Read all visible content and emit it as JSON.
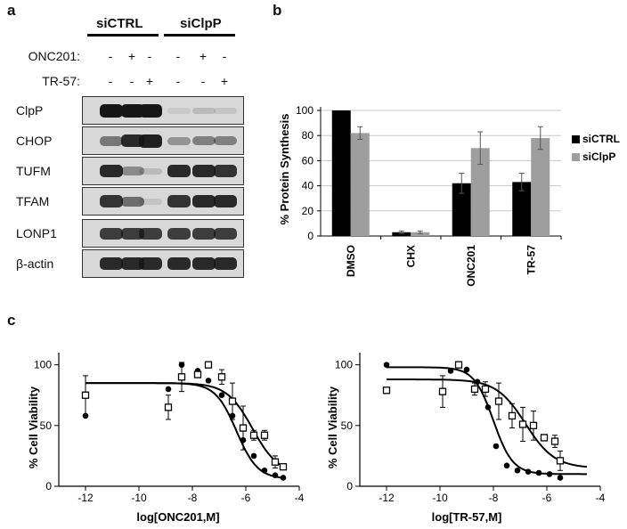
{
  "panels": {
    "a": "a",
    "b": "b",
    "c": "c"
  },
  "panel_a": {
    "groups": [
      "siCTRL",
      "siClpP"
    ],
    "treatments": [
      {
        "label": "ONC201:",
        "signs": [
          "-",
          "+",
          "-",
          "-",
          "+",
          "-"
        ]
      },
      {
        "label": "TR-57:",
        "signs": [
          "-",
          "-",
          "+",
          "-",
          "-",
          "+"
        ]
      }
    ],
    "blots": [
      {
        "label": "ClpP",
        "intensity": [
          1.0,
          1.0,
          1.0,
          0.08,
          0.15,
          0.1
        ]
      },
      {
        "label": "CHOP",
        "intensity": [
          0.5,
          0.9,
          0.95,
          0.35,
          0.45,
          0.45
        ]
      },
      {
        "label": "TUFM",
        "intensity": [
          0.9,
          0.4,
          0.15,
          0.9,
          0.9,
          0.85
        ]
      },
      {
        "label": "TFAM",
        "intensity": [
          0.85,
          0.55,
          0.1,
          0.85,
          0.9,
          0.9
        ]
      },
      {
        "label": "LONP1",
        "intensity": [
          0.8,
          0.8,
          0.8,
          0.8,
          0.8,
          0.8
        ]
      },
      {
        "label": "β-actin",
        "intensity": [
          0.9,
          0.9,
          0.9,
          0.9,
          0.9,
          0.9
        ]
      }
    ]
  },
  "panel_b": {
    "chart_data": {
      "type": "bar",
      "categories": [
        "DMSO",
        "CHX",
        "ONC201",
        "TR-57"
      ],
      "series": [
        {
          "name": "siCTRL",
          "values": [
            100,
            3,
            42,
            43
          ],
          "errors": [
            0,
            1,
            8,
            7
          ],
          "color": "#000000"
        },
        {
          "name": "siClpP",
          "values": [
            82,
            3,
            70,
            78
          ],
          "errors": [
            5,
            1,
            13,
            9
          ],
          "color": "#9e9e9e"
        }
      ],
      "ylabel": "% Protein Synthesis",
      "ylim": [
        0,
        100
      ],
      "yticks": [
        0,
        20,
        40,
        60,
        80,
        100
      ],
      "grid": true,
      "legend": "right"
    }
  },
  "panel_c": {
    "chart_data": [
      {
        "type": "scatter",
        "xlabel": "log[ONC201,M]",
        "ylabel": "% Cell Viability",
        "xlim": [
          -13,
          -4
        ],
        "ylim": [
          0,
          110
        ],
        "xticks": [
          -12,
          -10,
          -8,
          -6,
          -4
        ],
        "yticks": [
          0,
          50,
          100
        ],
        "series": [
          {
            "marker": "filled-circle",
            "x": [
              -12,
              -8.9,
              -8.4,
              -7.8,
              -7.4,
              -6.9,
              -6.5,
              -6.1,
              -5.7,
              -5.3,
              -4.9,
              -4.6
            ],
            "y": [
              58,
              80,
              100,
              95,
              87,
              75,
              58,
              38,
              25,
              13,
              9,
              7
            ],
            "fit": {
              "top": 85,
              "bottom": 6,
              "log_ic50": -6.35,
              "hill": 1.1
            }
          },
          {
            "marker": "open-square",
            "x": [
              -12,
              -8.9,
              -8.4,
              -7.8,
              -7.4,
              -6.9,
              -6.5,
              -6.1,
              -5.7,
              -5.3,
              -4.9,
              -4.6
            ],
            "y": [
              75,
              65,
              90,
              92,
              100,
              90,
              70,
              48,
              42,
              42,
              20,
              16
            ],
            "errors": [
              16,
              10,
              12,
              0,
              0,
              6,
              15,
              18,
              4,
              4,
              5,
              0
            ],
            "fit": {
              "top": 85,
              "bottom": 10,
              "log_ic50": -5.75,
              "hill": 0.9
            }
          }
        ]
      },
      {
        "type": "scatter",
        "xlabel": "log[TR-57,M]",
        "ylabel": "% Cell Viability",
        "xlim": [
          -13,
          -4
        ],
        "ylim": [
          0,
          110
        ],
        "xticks": [
          -12,
          -10,
          -8,
          -6,
          -4
        ],
        "yticks": [
          0,
          50,
          100
        ],
        "series": [
          {
            "marker": "filled-circle",
            "x": [
              -12,
              -9.6,
              -9,
              -8.6,
              -8.2,
              -7.9,
              -7.5,
              -7.1,
              -6.7,
              -6.3,
              -5.9,
              -5.5
            ],
            "y": [
              100,
              95,
              96,
              86,
              65,
              33,
              17,
              13,
              12,
              11,
              10,
              7
            ],
            "fit": {
              "top": 98,
              "bottom": 10,
              "log_ic50": -8.0,
              "hill": 1.2
            }
          },
          {
            "marker": "open-square",
            "x": [
              -12,
              -9.9,
              -9.3,
              -8.7,
              -8.3,
              -7.8,
              -7.3,
              -6.9,
              -6.5,
              -6.1,
              -5.7,
              -5.5
            ],
            "y": [
              79,
              78,
              100,
              80,
              80,
              70,
              58,
              51,
              50,
              40,
              37,
              21
            ],
            "errors": [
              0,
              13,
              0,
              5,
              6,
              15,
              10,
              14,
              12,
              0,
              5,
              8
            ],
            "fit": {
              "top": 88,
              "bottom": 15,
              "log_ic50": -6.8,
              "hill": 0.8
            }
          }
        ]
      }
    ]
  }
}
